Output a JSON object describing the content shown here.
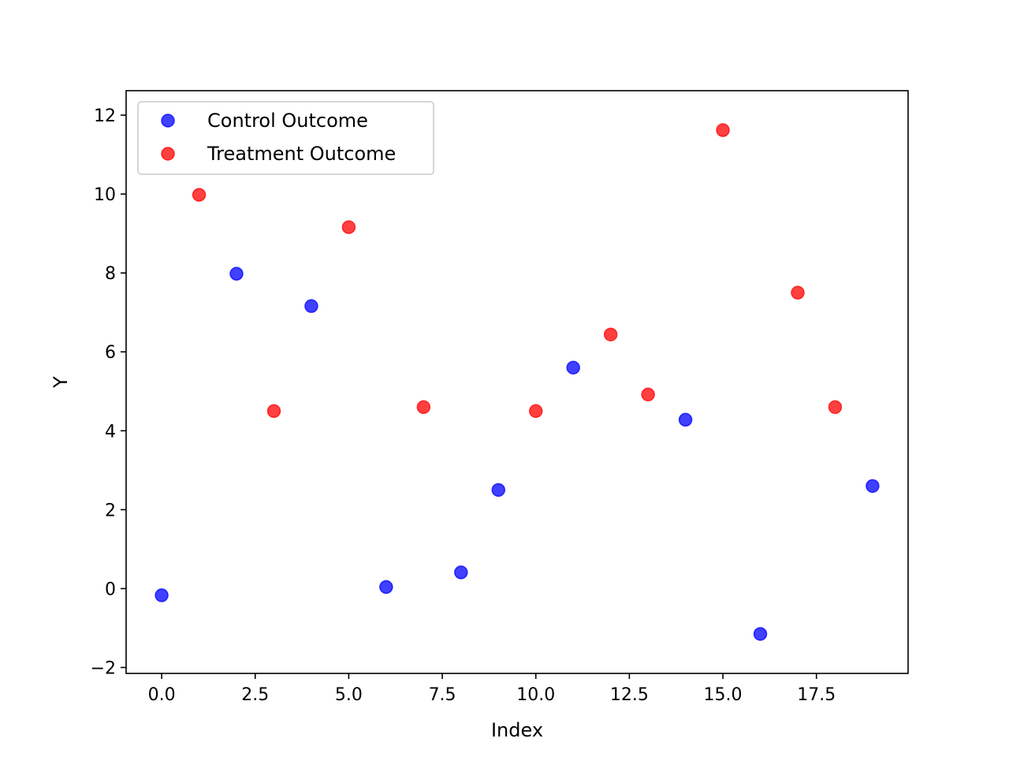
{
  "chart_data": {
    "type": "scatter",
    "title": "",
    "xlabel": "Index",
    "ylabel": "Y",
    "xlim": [
      -0.95,
      19.95
    ],
    "ylim": [
      -2.15,
      12.62
    ],
    "xticks": [
      0.0,
      2.5,
      5.0,
      7.5,
      10.0,
      12.5,
      15.0,
      17.5
    ],
    "xtick_labels": [
      "0.0",
      "2.5",
      "5.0",
      "7.5",
      "10.0",
      "12.5",
      "15.0",
      "17.5"
    ],
    "yticks": [
      -2,
      0,
      2,
      4,
      6,
      8,
      10,
      12
    ],
    "ytick_labels": [
      "−2",
      "0",
      "2",
      "4",
      "6",
      "8",
      "10",
      "12"
    ],
    "grid": false,
    "legend_position": "top-left",
    "series": [
      {
        "name": "Control Outcome",
        "color": "#0000ff",
        "points": [
          {
            "x": 0,
            "y": -0.17
          },
          {
            "x": 2,
            "y": 7.98
          },
          {
            "x": 4,
            "y": 7.16
          },
          {
            "x": 6,
            "y": 0.04
          },
          {
            "x": 8,
            "y": 0.41
          },
          {
            "x": 9,
            "y": 2.5
          },
          {
            "x": 11,
            "y": 5.6
          },
          {
            "x": 14,
            "y": 4.28
          },
          {
            "x": 16,
            "y": -1.15
          },
          {
            "x": 19,
            "y": 2.6
          }
        ]
      },
      {
        "name": "Treatment Outcome",
        "color": "#ff0000",
        "points": [
          {
            "x": 1,
            "y": 9.98
          },
          {
            "x": 3,
            "y": 4.5
          },
          {
            "x": 5,
            "y": 9.16
          },
          {
            "x": 7,
            "y": 4.6
          },
          {
            "x": 10,
            "y": 4.5
          },
          {
            "x": 12,
            "y": 6.44
          },
          {
            "x": 13,
            "y": 4.92
          },
          {
            "x": 15,
            "y": 11.62
          },
          {
            "x": 17,
            "y": 7.5
          },
          {
            "x": 18,
            "y": 4.6
          }
        ]
      }
    ]
  }
}
